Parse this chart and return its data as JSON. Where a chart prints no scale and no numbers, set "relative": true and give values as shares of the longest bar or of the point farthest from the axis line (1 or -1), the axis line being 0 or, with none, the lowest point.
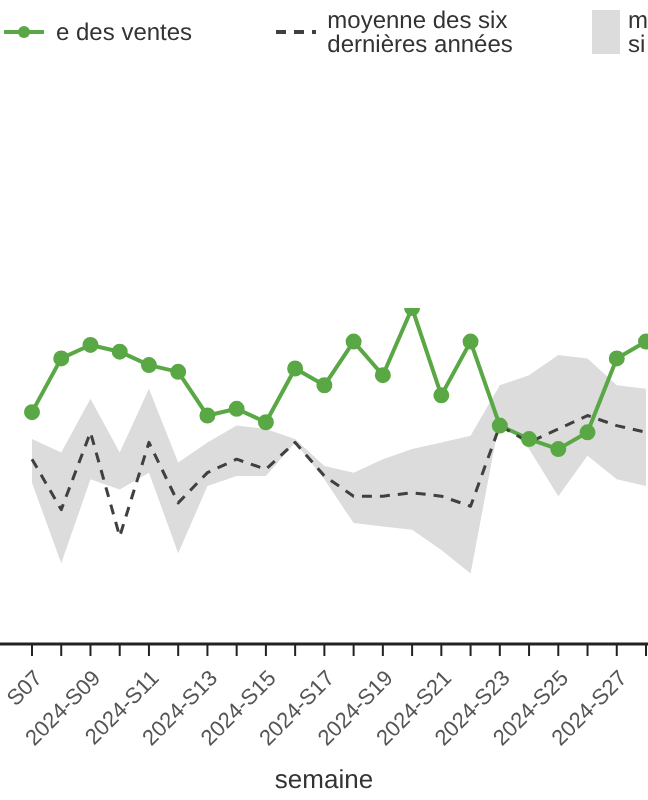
{
  "chart_data": {
    "type": "line",
    "relative": true,
    "xlabel": "semaine",
    "legend": "top",
    "grid": false,
    "annotations": [
      "m\nsi"
    ],
    "categories": [
      "S07",
      null,
      "2024-S09",
      null,
      "2024-S11",
      null,
      "2024-S13",
      null,
      "2024-S15",
      null,
      "2024-S17",
      null,
      "2024-S19",
      null,
      "2024-S21",
      null,
      "2024-S23",
      null,
      "2024-S25",
      null,
      "2024-S27",
      null
    ],
    "series": [
      {
        "name": "e des ventes",
        "color": "#5aa845",
        "marker": "circle",
        "line_style": "solid",
        "values": [
          0.69,
          0.85,
          0.89,
          0.87,
          0.83,
          0.81,
          0.68,
          0.7,
          0.66,
          0.82,
          0.77,
          0.9,
          0.8,
          1.0,
          0.74,
          0.9,
          0.65,
          0.61,
          0.58,
          0.63,
          0.85,
          0.9
        ]
      },
      {
        "name": "moyenne des six\ndernières années",
        "color": "#404040",
        "marker": "none",
        "line_style": "dashed",
        "values": [
          0.55,
          0.4,
          0.63,
          0.32,
          0.6,
          0.42,
          0.51,
          0.55,
          0.52,
          0.6,
          0.5,
          0.44,
          0.44,
          0.45,
          0.44,
          0.41,
          0.65,
          0.6,
          0.64,
          0.68,
          0.65,
          0.63
        ],
        "lower": [
          0.48,
          0.24,
          0.49,
          0.46,
          0.51,
          0.27,
          0.47,
          0.5,
          0.5,
          0.6,
          0.49,
          0.36,
          0.35,
          0.34,
          0.28,
          0.21,
          0.67,
          0.58,
          0.44,
          0.56,
          0.49,
          0.47
        ],
        "upper": [
          0.61,
          0.57,
          0.73,
          0.57,
          0.76,
          0.54,
          0.6,
          0.65,
          0.64,
          0.61,
          0.53,
          0.51,
          0.55,
          0.58,
          0.6,
          0.62,
          0.77,
          0.8,
          0.86,
          0.85,
          0.77,
          0.76
        ]
      }
    ]
  }
}
